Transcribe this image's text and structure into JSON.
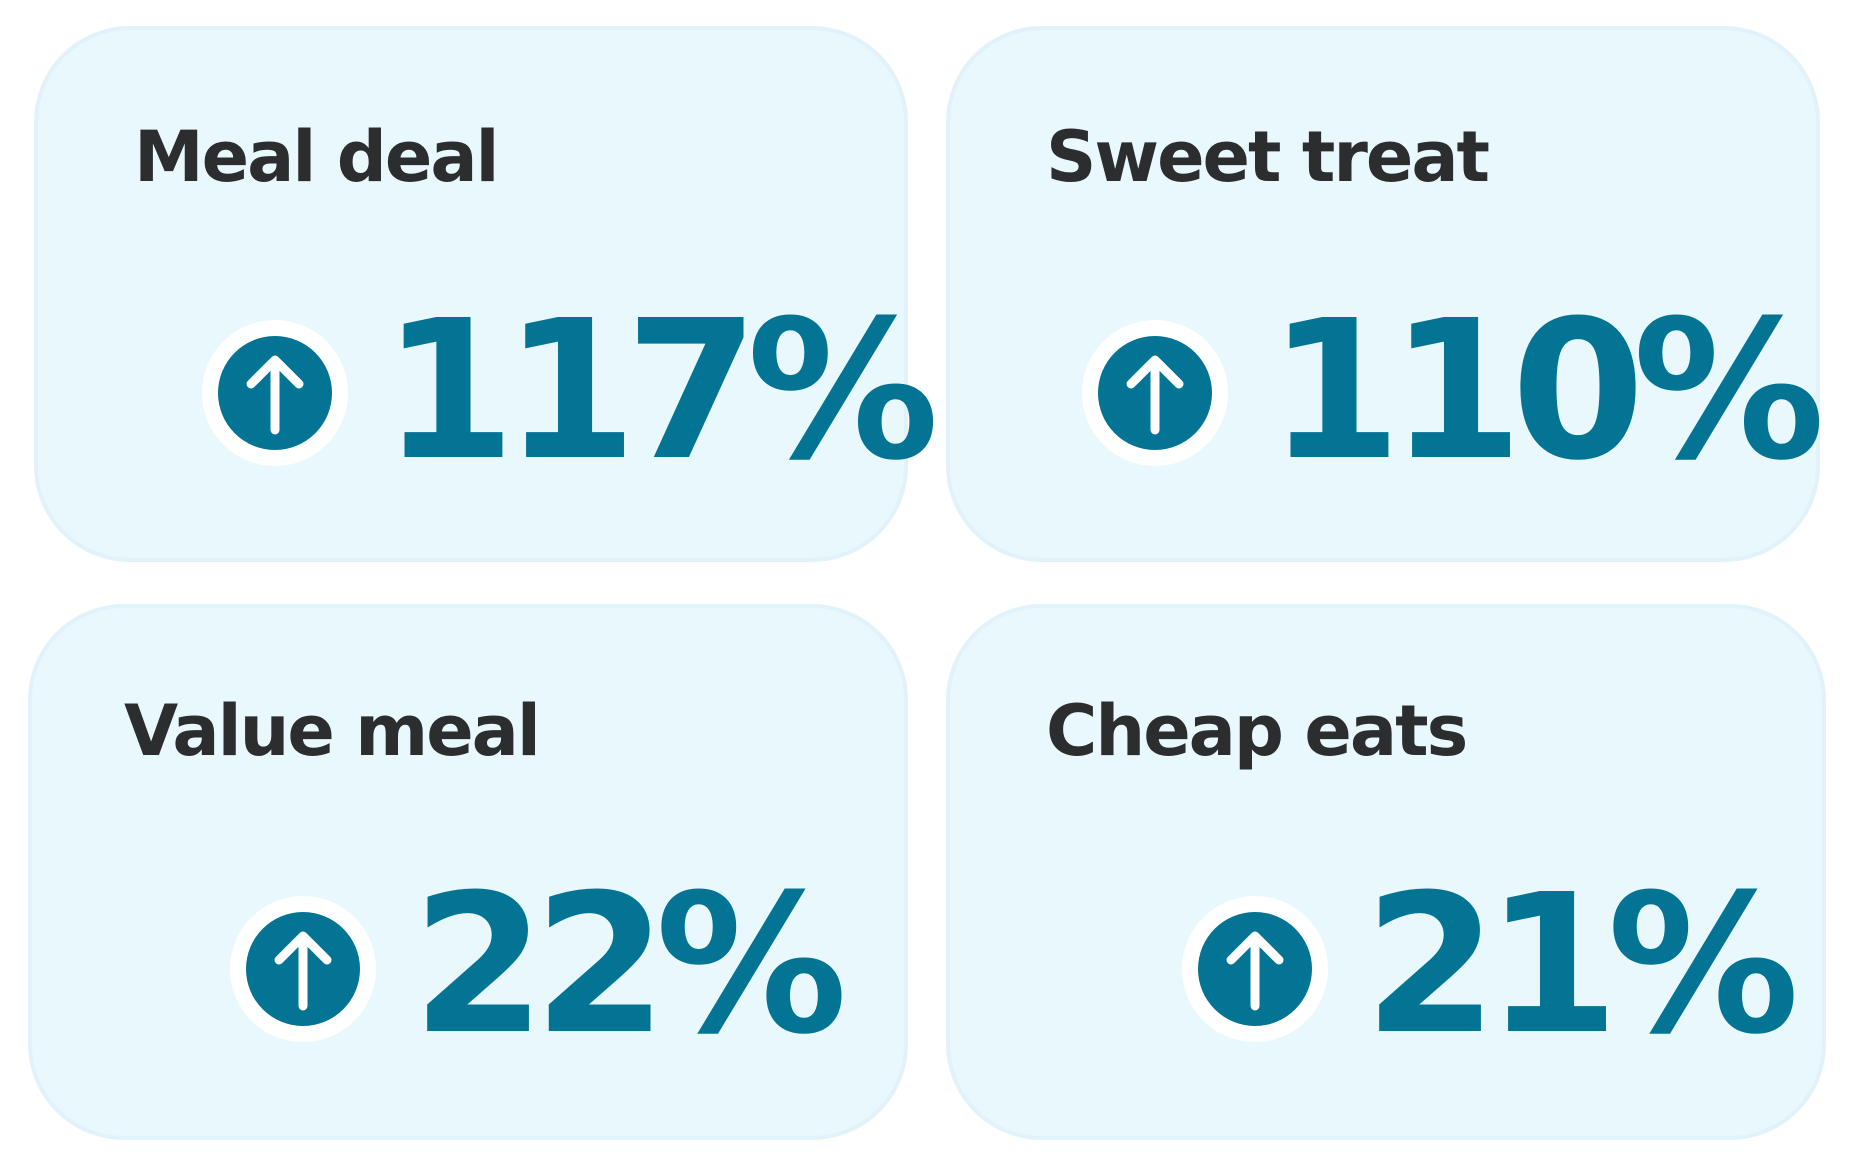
{
  "cards": [
    {
      "title": "Meal deal",
      "value": "117%",
      "icon": "arrow-up-circle-icon"
    },
    {
      "title": "Sweet treat",
      "value": "110%",
      "icon": "arrow-up-circle-icon"
    },
    {
      "title": "Value meal",
      "value": "22%",
      "icon": "arrow-up-circle-icon"
    },
    {
      "title": "Cheap eats",
      "value": "21%",
      "icon": "arrow-up-circle-icon"
    }
  ],
  "colors": {
    "card_background": "#e9f8fd",
    "title_text": "#2b2d2f",
    "accent": "#037493"
  }
}
